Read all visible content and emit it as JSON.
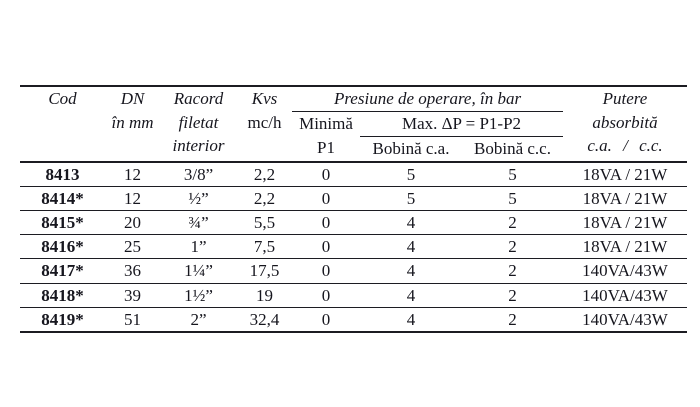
{
  "page": {
    "background_color": "#ffffff",
    "text_color": "#16161e",
    "line_color": "#1c1c22"
  },
  "table": {
    "header": {
      "cod": "Cod",
      "dn_line1": "DN",
      "dn_line2": "în mm",
      "racord_line1": "Racord",
      "racord_line2": "filetat",
      "racord_line3": "interior",
      "kvs_line1": "Kvs",
      "kvs_line2": "mc/h",
      "presiune_group": "Presiune de operare, în bar",
      "minima_line1": "Minimă",
      "minima_line2": "P1",
      "max_dp_group": "Max. ΔP = P1-P2",
      "bobina_ca": "Bobină c.a.",
      "bobina_cc": "Bobină c.c.",
      "putere_line1": "Putere",
      "putere_line2": "absorbită",
      "putere_line3": "c.a. / c.c."
    },
    "rows": [
      {
        "cod": "8413",
        "dn": "12",
        "racord": "3/8”",
        "kvs": "2,2",
        "minima": "0",
        "bobina_ca": "5",
        "bobina_cc": "5",
        "putere": "18VA / 21W"
      },
      {
        "cod": "8414*",
        "dn": "12",
        "racord": "½”",
        "kvs": "2,2",
        "minima": "0",
        "bobina_ca": "5",
        "bobina_cc": "5",
        "putere": "18VA / 21W"
      },
      {
        "cod": "8415*",
        "dn": "20",
        "racord": "¾”",
        "kvs": "5,5",
        "minima": "0",
        "bobina_ca": "4",
        "bobina_cc": "2",
        "putere": "18VA / 21W"
      },
      {
        "cod": "8416*",
        "dn": "25",
        "racord": "1”",
        "kvs": "7,5",
        "minima": "0",
        "bobina_ca": "4",
        "bobina_cc": "2",
        "putere": "18VA / 21W"
      },
      {
        "cod": "8417*",
        "dn": "36",
        "racord": "1¼”",
        "kvs": "17,5",
        "minima": "0",
        "bobina_ca": "4",
        "bobina_cc": "2",
        "putere": "140VA/43W"
      },
      {
        "cod": "8418*",
        "dn": "39",
        "racord": "1½”",
        "kvs": "19",
        "minima": "0",
        "bobina_ca": "4",
        "bobina_cc": "2",
        "putere": "140VA/43W"
      },
      {
        "cod": "8419*",
        "dn": "51",
        "racord": "2”",
        "kvs": "32,4",
        "minima": "0",
        "bobina_ca": "4",
        "bobina_cc": "2",
        "putere": "140VA/43W"
      }
    ]
  }
}
